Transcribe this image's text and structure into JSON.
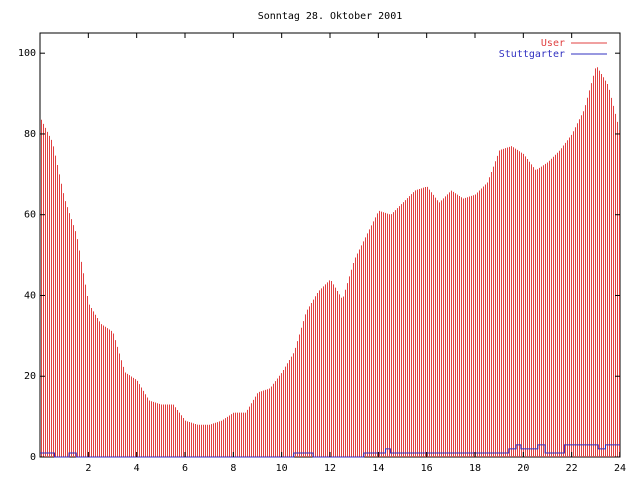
{
  "chart_data": {
    "type": "bar",
    "title": "Sonntag 28. Oktober 2001",
    "xlabel": "",
    "ylabel": "",
    "xlim": [
      0,
      24
    ],
    "ylim": [
      0,
      105
    ],
    "x_ticks": [
      2,
      4,
      6,
      8,
      10,
      12,
      14,
      16,
      18,
      20,
      22,
      24
    ],
    "y_ticks": [
      0,
      20,
      40,
      60,
      80,
      100
    ],
    "x_tick_labels": [
      "2",
      "4",
      "6",
      "8",
      "10",
      "12",
      "14",
      "16",
      "18",
      "20",
      "22",
      "24"
    ],
    "y_tick_labels": [
      "0",
      "20",
      "40",
      "60",
      "80",
      "100"
    ],
    "grid": false,
    "legend_position": "top-right",
    "series": [
      {
        "name": "User",
        "render": "impulses",
        "color": "#e04040",
        "x": [
          0,
          0.5,
          1,
          1.5,
          2,
          2.5,
          3,
          3.5,
          4,
          4.5,
          5,
          5.5,
          6,
          6.5,
          7,
          7.5,
          8,
          8.5,
          9,
          9.5,
          10,
          10.5,
          11,
          11.5,
          12,
          12.5,
          13,
          13.5,
          14,
          14.5,
          15,
          15.5,
          16,
          16.5,
          17,
          17.5,
          18,
          18.5,
          19,
          19.5,
          20,
          20.5,
          21,
          21.5,
          22,
          22.5,
          23,
          23.5,
          24
        ],
        "values": [
          84,
          78,
          64,
          55,
          38,
          33,
          31,
          21,
          19,
          14,
          13,
          13,
          9,
          8,
          8,
          9,
          11,
          11,
          16,
          17,
          21,
          26,
          36,
          41,
          44,
          39,
          49,
          55,
          61,
          60,
          63,
          66,
          67,
          63,
          66,
          64,
          65,
          68,
          76,
          77,
          75,
          71,
          73,
          76,
          80,
          86,
          97,
          92,
          80
        ]
      },
      {
        "name": "Stuttgarter",
        "render": "step-line",
        "color": "#3030c0",
        "x": [
          0,
          0.6,
          1.2,
          1.5,
          10.5,
          11.3,
          13.4,
          14.3,
          14.5,
          19.4,
          19.7,
          19.9,
          20.6,
          20.9,
          21.7,
          23.1,
          23.4,
          24
        ],
        "values": [
          1,
          0,
          1,
          0,
          1,
          0,
          1,
          2,
          1,
          2,
          3,
          2,
          3,
          1,
          3,
          2,
          3,
          3
        ]
      }
    ]
  }
}
